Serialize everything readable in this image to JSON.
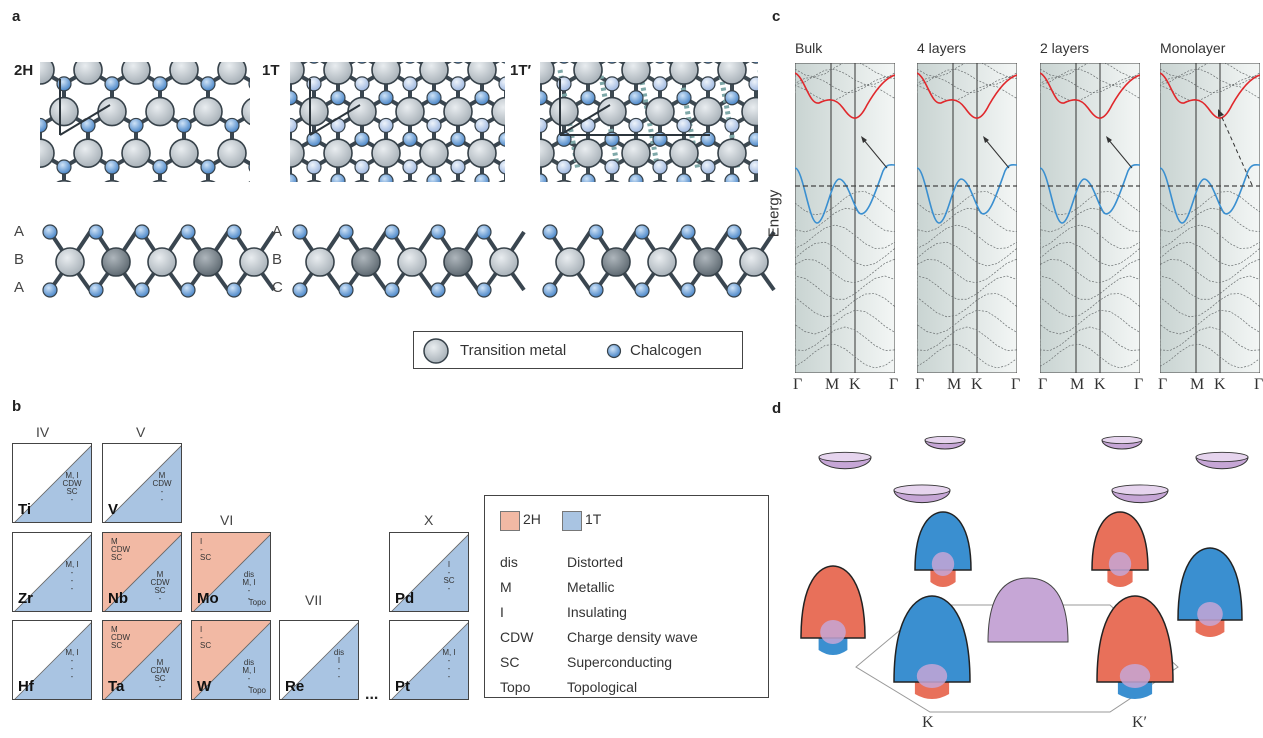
{
  "panels": {
    "a": "a",
    "b": "b",
    "c": "c",
    "d": "d"
  },
  "panel_a": {
    "phases": [
      "2H",
      "1T",
      "1T′"
    ],
    "stacking_2h": [
      "A",
      "B",
      "A"
    ],
    "stacking_1t": [
      "A",
      "B",
      "C"
    ],
    "legend": {
      "metal": "Transition metal",
      "chalcogen": "Chalcogen"
    }
  },
  "panel_b": {
    "groups": [
      "IV",
      "V",
      "VI",
      "VII",
      "X"
    ],
    "cells": [
      {
        "sym": "Ti",
        "p1t": [
          "M, I",
          "CDW",
          "SC",
          "-"
        ],
        "p2h": []
      },
      {
        "sym": "V",
        "p1t": [
          "M",
          "CDW",
          "-",
          "-"
        ],
        "p2h": []
      },
      {
        "sym": "Zr",
        "p1t": [
          "M, I",
          "-",
          "-",
          "-"
        ],
        "p2h": []
      },
      {
        "sym": "Nb",
        "p1t": [
          "M",
          "CDW",
          "SC",
          "-"
        ],
        "p2h": [
          "M",
          "CDW",
          "SC"
        ]
      },
      {
        "sym": "Mo",
        "p1t": [
          "dis",
          "M, I",
          "-",
          "-"
        ],
        "p2h": [
          "I",
          "-",
          "SC"
        ],
        "extra": "Topo"
      },
      {
        "sym": "Pd",
        "p1t": [
          "I",
          "-",
          "SC",
          "-"
        ],
        "p2h": []
      },
      {
        "sym": "Hf",
        "p1t": [
          "M, I",
          "-",
          "-",
          "-"
        ],
        "p2h": []
      },
      {
        "sym": "Ta",
        "p1t": [
          "M",
          "CDW",
          "SC",
          "-"
        ],
        "p2h": [
          "M",
          "CDW",
          "SC"
        ]
      },
      {
        "sym": "W",
        "p1t": [
          "dis",
          "M, I",
          "-",
          "-"
        ],
        "p2h": [
          "I",
          "-",
          "SC"
        ],
        "extra": "Topo"
      },
      {
        "sym": "Re",
        "p1t": [
          "dis",
          "I",
          "-",
          "-"
        ],
        "p2h": []
      },
      {
        "sym": "Pt",
        "p1t": [
          "M, I",
          "-",
          "-",
          "-"
        ],
        "p2h": []
      }
    ],
    "ellipsis": "...",
    "legend": {
      "swatch_2h": "2H",
      "swatch_1t": "1T",
      "rows": [
        {
          "abbr": "dis",
          "desc": "Distorted"
        },
        {
          "abbr": "M",
          "desc": "Metallic"
        },
        {
          "abbr": "I",
          "desc": "Insulating"
        },
        {
          "abbr": "CDW",
          "desc": "Charge density wave"
        },
        {
          "abbr": "SC",
          "desc": "Superconducting"
        },
        {
          "abbr": "Topo",
          "desc": "Topological"
        }
      ]
    },
    "colors": {
      "2H": "#f2b9a4",
      "1T": "#a9c4e2"
    }
  },
  "panel_c": {
    "ylabel": "Energy",
    "columns": [
      "Bulk",
      "4 layers",
      "2 layers",
      "Monolayer"
    ],
    "kpoints": [
      "Γ",
      "M",
      "K",
      "Γ"
    ],
    "colors": {
      "conduction": "#e0282c",
      "valence": "#3a8fd0"
    }
  },
  "panel_d": {
    "valleys": [
      "K",
      "K′"
    ],
    "colors": {
      "red": "#e8705a",
      "blue": "#3a8fd0",
      "purple": "#c6a6d6"
    }
  }
}
